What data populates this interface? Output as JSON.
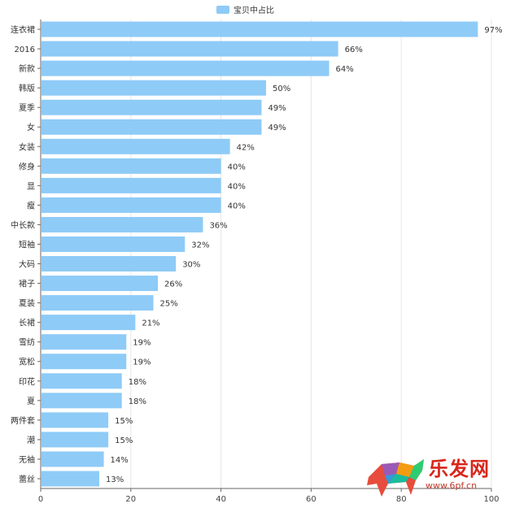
{
  "chart_data": {
    "type": "bar",
    "orientation": "horizontal",
    "categories": [
      "连衣裙",
      "2016",
      "新款",
      "韩版",
      "夏季",
      "女",
      "女装",
      "修身",
      "显",
      "瘦",
      "中长款",
      "短袖",
      "大码",
      "裙子",
      "夏装",
      "长裙",
      "雪纺",
      "宽松",
      "印花",
      "夏",
      "两件套",
      "潮",
      "无袖",
      "蕾丝"
    ],
    "series": [
      {
        "name": "宝贝中占比",
        "values": [
          97,
          66,
          64,
          50,
          49,
          49,
          42,
          40,
          40,
          40,
          36,
          32,
          30,
          26,
          25,
          21,
          19,
          19,
          18,
          18,
          15,
          15,
          14,
          13
        ],
        "labels": [
          "97%",
          "66%",
          "64%",
          "50%",
          "49%",
          "49%",
          "42%",
          "40%",
          "40%",
          "40%",
          "36%",
          "32%",
          "30%",
          "26%",
          "25%",
          "21%",
          "19%",
          "19%",
          "18%",
          "18%",
          "15%",
          "15%",
          "14%",
          "13%"
        ]
      }
    ],
    "xlim": [
      0,
      100
    ],
    "xticks": [
      "0",
      "20",
      "40",
      "60",
      "80",
      "100"
    ],
    "grid": true,
    "legend": "top-center",
    "bar_color": "#8ecbf7",
    "grid_color": "#e6e6e6",
    "axis_color": "#666666"
  },
  "watermark": {
    "logo_text": "乐发网",
    "url": "www.6pf.cn"
  }
}
